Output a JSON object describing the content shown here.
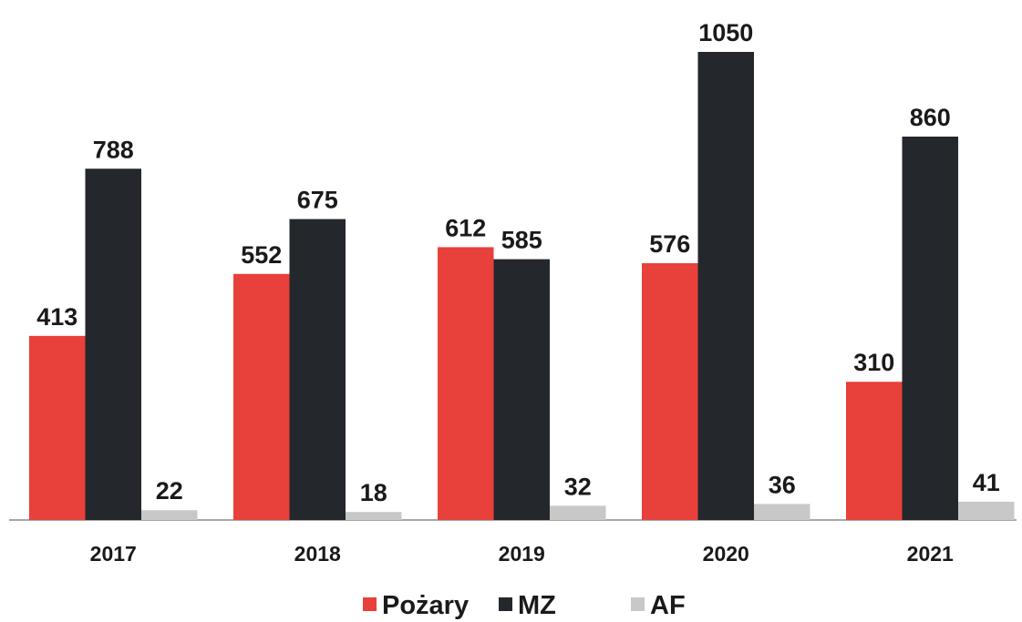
{
  "chart_data": {
    "type": "bar",
    "categories": [
      "2017",
      "2018",
      "2019",
      "2020",
      "2021"
    ],
    "series": [
      {
        "name": "Pożary",
        "color": "#e8403a",
        "values": [
          413,
          552,
          612,
          576,
          310
        ]
      },
      {
        "name": "MZ",
        "color": "#24272b",
        "values": [
          788,
          675,
          585,
          1050,
          860
        ]
      },
      {
        "name": "AF",
        "color": "#c8c8c8",
        "values": [
          22,
          18,
          32,
          36,
          41
        ]
      }
    ],
    "legend": "bottom"
  }
}
